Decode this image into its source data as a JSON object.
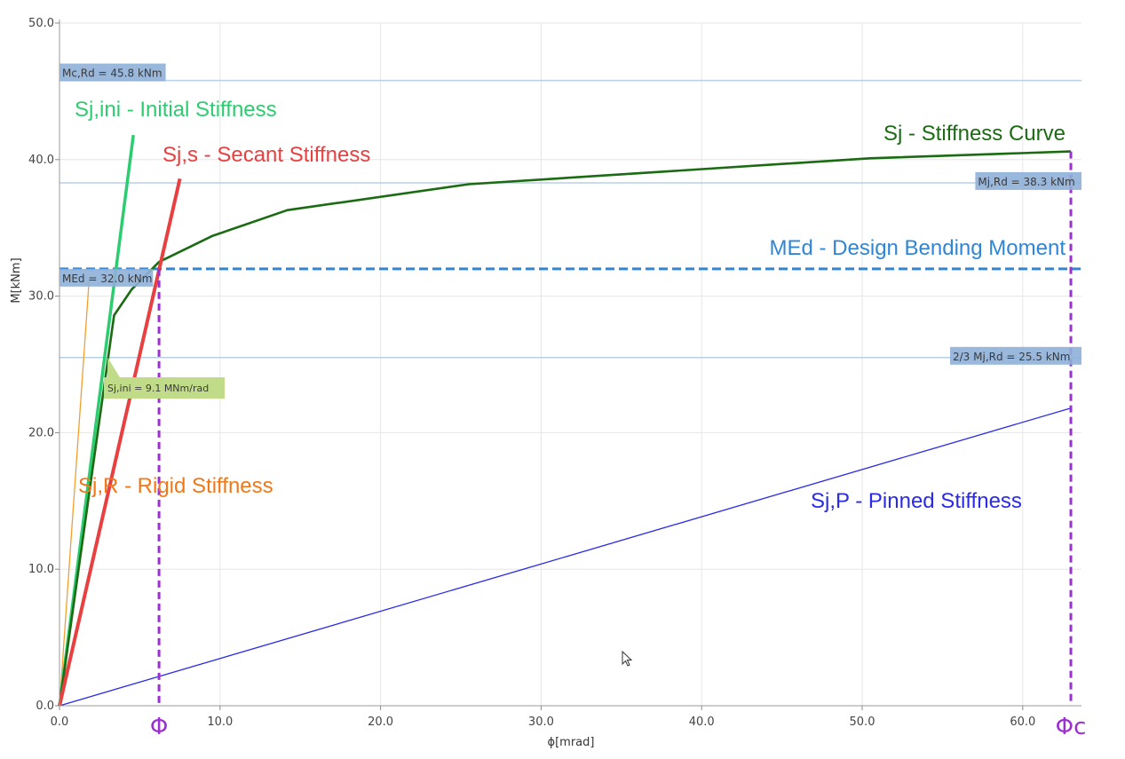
{
  "chart_data": {
    "type": "line",
    "xlabel": "ϕ[mrad]",
    "ylabel": "M[kNm]",
    "xlim": [
      0,
      63.5
    ],
    "ylim": [
      0,
      50
    ],
    "x_ticks": [
      "0.0",
      "10.0",
      "20.0",
      "30.0",
      "40.0",
      "50.0",
      "60.0"
    ],
    "y_ticks": [
      "0.0",
      "10.0",
      "20.0",
      "30.0",
      "40.0",
      "50.0"
    ],
    "grid": true,
    "colors": {
      "stiffness_curve": "#1a6b12",
      "initial": "#2ecc71",
      "secant": "#e84040",
      "rigid": "#f0a030",
      "pinned": "#2a2ae8",
      "design_moment": "#2f86d6",
      "reference": "#b8cfe8",
      "phi_marker": "#9b30d0",
      "label_box": "#8fb0d8",
      "ini_box": "#c0dc88"
    },
    "series": [
      {
        "key": "curve",
        "x": [
          0,
          3.4,
          4.5,
          6.2,
          9.5,
          14.2,
          25.5,
          50.5,
          63
        ],
        "y": [
          0,
          28.6,
          30.5,
          32.5,
          34.4,
          36.3,
          38.2,
          40.1,
          40.6
        ]
      },
      {
        "key": "initial",
        "x": [
          0,
          4.6
        ],
        "y": [
          0,
          41.8
        ]
      },
      {
        "key": "secant",
        "x": [
          0,
          7.5
        ],
        "y": [
          0,
          38.6
        ]
      },
      {
        "key": "rigid",
        "x": [
          0,
          1.85
        ],
        "y": [
          0,
          31.2
        ]
      },
      {
        "key": "pinned",
        "x": [
          0,
          63
        ],
        "y": [
          0,
          21.8
        ]
      }
    ],
    "reference_lines": [
      {
        "key": "mcrd",
        "y": 45.8,
        "label": "Mc,Rd = 45.8 kNm",
        "label_side": "left"
      },
      {
        "key": "mjrd",
        "y": 38.3,
        "label": "Mj,Rd = 38.3 kNm",
        "label_side": "right"
      },
      {
        "key": "med",
        "y": 32.0,
        "label": "MEd = 32.0 kNm",
        "label_side": "left"
      },
      {
        "key": "mj23",
        "y": 25.5,
        "label": "2/3 Mj,Rd = 25.5 kNm",
        "label_side": "right"
      }
    ],
    "phi_markers": [
      {
        "key": "phi",
        "x": 6.2,
        "label": "Φ"
      },
      {
        "key": "phic",
        "x": 63.0,
        "label": "Φc"
      }
    ],
    "ini_label": "Sj,ini = 9.1 MNm/rad",
    "annotations": {
      "initial": "Sj,ini - Initial Stiffness",
      "secant": "Sj,s - Secant Stiffness",
      "curve": "Sj - Stiffness Curve",
      "design": "MEd - Design Bending Moment",
      "rigid": "Sj,R - Rigid Stiffness",
      "pinned": "Sj,P - Pinned Stiffness"
    }
  }
}
